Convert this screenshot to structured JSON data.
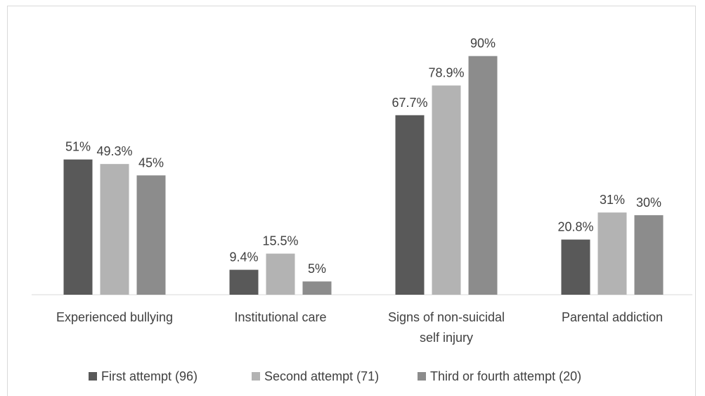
{
  "chart_data": {
    "type": "bar",
    "categories": [
      [
        "Experienced bullying"
      ],
      [
        "Institutional care"
      ],
      [
        "Signs of non-suicidal",
        "self injury"
      ],
      [
        "Parental addiction"
      ]
    ],
    "series": [
      {
        "name": "First attempt (96)",
        "color": "#595959",
        "values": [
          51,
          9.4,
          67.7,
          20.8
        ],
        "labels": [
          "51%",
          "9.4%",
          "67.7%",
          "20.8%"
        ]
      },
      {
        "name": "Second attempt (71)",
        "color": "#b3b3b3",
        "values": [
          49.3,
          15.5,
          78.9,
          31
        ],
        "labels": [
          "49.3%",
          "15.5%",
          "78.9%",
          "31%"
        ]
      },
      {
        "name": "Third or fourth attempt (20)",
        "color": "#8c8c8c",
        "values": [
          45,
          5,
          90,
          30
        ],
        "labels": [
          "45%",
          "5%",
          "90%",
          "30%"
        ]
      }
    ],
    "ylim": [
      0,
      100
    ],
    "grid": false,
    "legend_position": "bottom"
  }
}
